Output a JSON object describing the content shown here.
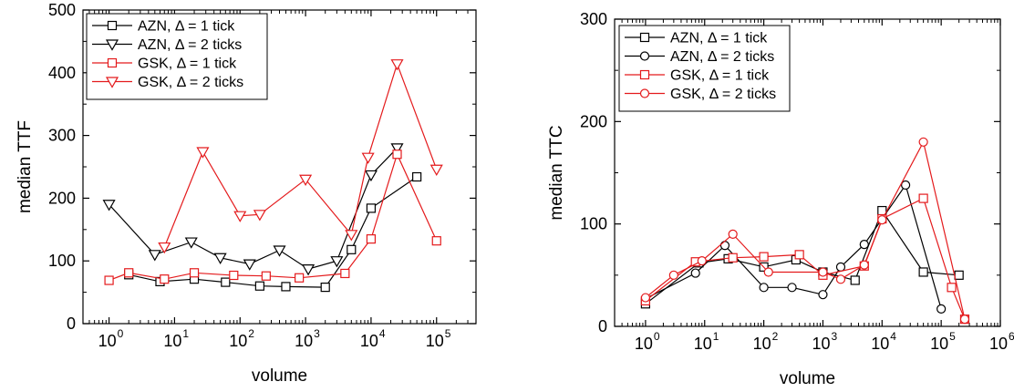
{
  "chart_data": [
    {
      "type": "line",
      "xlabel": "volume",
      "ylabel": "median TTF",
      "xscale": "log",
      "xlim": [
        0.4,
        400000
      ],
      "ylim": [
        0,
        500
      ],
      "yticks": [
        0,
        100,
        200,
        300,
        400,
        500
      ],
      "xtick_exponents": [
        "0",
        "1",
        "2",
        "3",
        "4",
        "5"
      ],
      "legend_position": "top-left",
      "series": [
        {
          "name": "AZN, Δ = 1 tick",
          "color": "#000000",
          "marker": "square",
          "x": [
            2,
            6,
            20,
            60,
            200,
            500,
            2000,
            5000,
            10000,
            50000
          ],
          "y": [
            78,
            67,
            71,
            66,
            60,
            59,
            58,
            118,
            184,
            234
          ]
        },
        {
          "name": "AZN, Δ = 2 ticks",
          "color": "#000000",
          "marker": "triangle-down",
          "x": [
            1,
            5,
            18,
            50,
            140,
            400,
            1100,
            3000,
            10000,
            25000
          ],
          "y": [
            190,
            110,
            130,
            105,
            95,
            117,
            87,
            100,
            237,
            280
          ]
        },
        {
          "name": "GSK, Δ = 1 tick",
          "color": "#e41a1c",
          "marker": "square",
          "x": [
            1,
            2,
            7,
            20,
            80,
            250,
            800,
            4000,
            10000,
            25000,
            100000
          ],
          "y": [
            69,
            81,
            71,
            81,
            77,
            76,
            73,
            80,
            135,
            270,
            132
          ]
        },
        {
          "name": "GSK, Δ = 2 ticks",
          "color": "#e41a1c",
          "marker": "triangle-down",
          "x": [
            7,
            27,
            100,
            200,
            1000,
            5000,
            9000,
            25000,
            100000
          ],
          "y": [
            122,
            274,
            172,
            174,
            230,
            142,
            265,
            414,
            246
          ]
        }
      ]
    },
    {
      "type": "line",
      "xlabel": "volume",
      "ylabel": "median TTC",
      "xscale": "log",
      "xlim": [
        0.3,
        1000000
      ],
      "ylim": [
        0,
        300
      ],
      "yticks": [
        0,
        100,
        200,
        300
      ],
      "xtick_exponents": [
        "0",
        "1",
        "2",
        "3",
        "4",
        "5",
        "6"
      ],
      "legend_position": "top-left",
      "series": [
        {
          "name": "AZN, Δ = 1 tick",
          "color": "#000000",
          "marker": "square",
          "x": [
            1,
            8,
            25,
            100,
            350,
            1000,
            3500,
            10000,
            50000,
            200000
          ],
          "y": [
            22,
            62,
            66,
            58,
            65,
            53,
            45,
            113,
            53,
            50
          ]
        },
        {
          "name": "AZN, Δ = 2 ticks",
          "color": "#000000",
          "marker": "circle",
          "x": [
            1,
            7,
            22,
            100,
            300,
            1000,
            2000,
            5000,
            25000,
            100000
          ],
          "y": [
            27,
            52,
            79,
            38,
            38,
            31,
            58,
            80,
            138,
            17
          ]
        },
        {
          "name": "GSK, Δ = 1 tick",
          "color": "#e41a1c",
          "marker": "square",
          "x": [
            1,
            7,
            30,
            100,
            400,
            1000,
            5000,
            10000,
            50000,
            150000,
            250000
          ],
          "y": [
            25,
            63,
            67,
            68,
            70,
            50,
            59,
            105,
            125,
            38,
            7
          ]
        },
        {
          "name": "GSK, Δ = 2 ticks",
          "color": "#e41a1c",
          "marker": "circle",
          "x": [
            1,
            3,
            9,
            30,
            120,
            1000,
            2000,
            5000,
            10000,
            50000,
            250000
          ],
          "y": [
            28,
            50,
            64,
            90,
            53,
            53,
            46,
            60,
            104,
            180,
            7
          ]
        }
      ]
    }
  ]
}
